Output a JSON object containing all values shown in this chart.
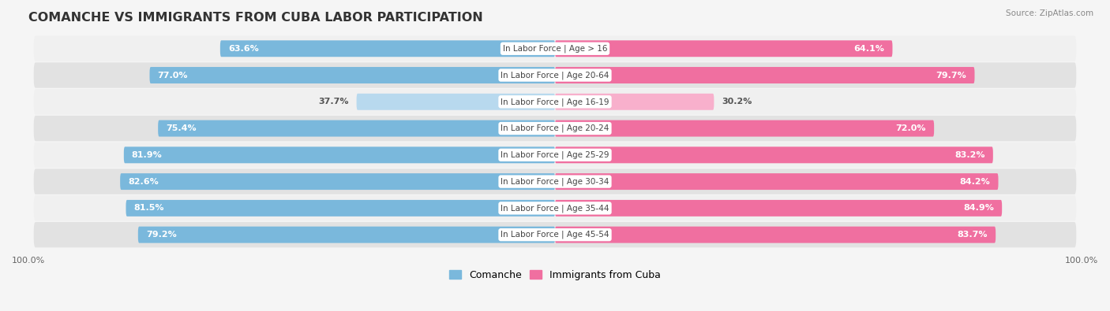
{
  "title": "COMANCHE VS IMMIGRANTS FROM CUBA LABOR PARTICIPATION",
  "source": "Source: ZipAtlas.com",
  "categories": [
    "In Labor Force | Age > 16",
    "In Labor Force | Age 20-64",
    "In Labor Force | Age 16-19",
    "In Labor Force | Age 20-24",
    "In Labor Force | Age 25-29",
    "In Labor Force | Age 30-34",
    "In Labor Force | Age 35-44",
    "In Labor Force | Age 45-54"
  ],
  "comanche_values": [
    63.6,
    77.0,
    37.7,
    75.4,
    81.9,
    82.6,
    81.5,
    79.2
  ],
  "cuba_values": [
    64.1,
    79.7,
    30.2,
    72.0,
    83.2,
    84.2,
    84.9,
    83.7
  ],
  "comanche_color": "#7ab8dc",
  "comanche_light_color": "#b8d9ee",
  "cuba_color": "#f06fa0",
  "cuba_light_color": "#f8b0cc",
  "bar_height": 0.62,
  "row_bg_light": "#f0f0f0",
  "row_bg_dark": "#e2e2e2",
  "fig_bg": "#f5f5f5",
  "title_fontsize": 11.5,
  "value_fontsize": 8,
  "cat_fontsize": 7.5,
  "legend_fontsize": 9,
  "tick_fontsize": 8
}
